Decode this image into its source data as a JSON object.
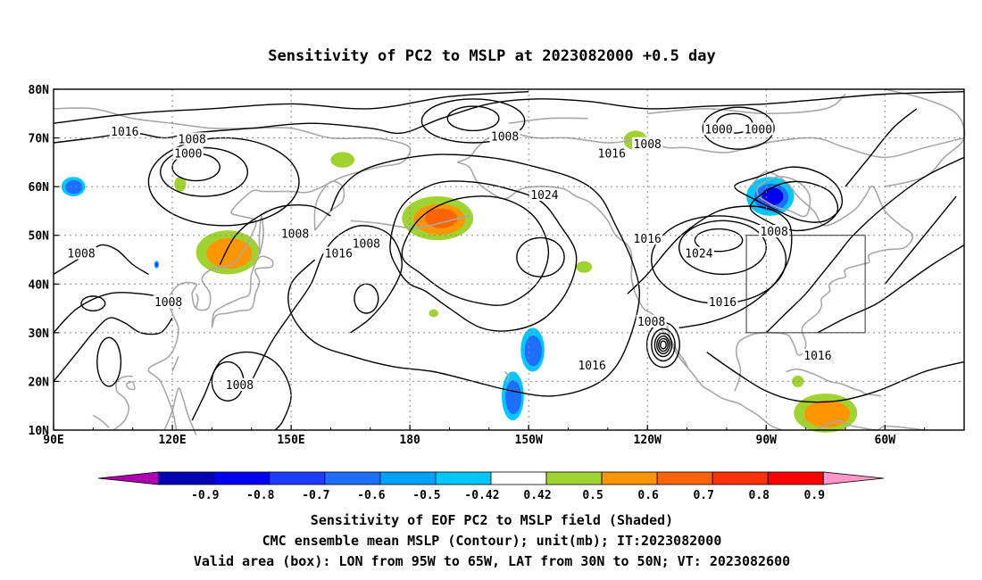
{
  "title": "Sensitivity of PC2 to MSLP at 2023082000 +0.5 day",
  "map": {
    "lon_ticks": [
      "90E",
      "120E",
      "150E",
      "180",
      "150W",
      "120W",
      "90W",
      "60W"
    ],
    "lat_ticks": [
      "80N",
      "70N",
      "60N",
      "50N",
      "40N",
      "30N",
      "20N",
      "10N"
    ],
    "valid_box": {
      "lon_west": "95W",
      "lon_east": "65W",
      "lat_south": "30N",
      "lat_north": "50N"
    },
    "contour_labels": [
      {
        "text": "1016",
        "lon": 108,
        "lat": 71
      },
      {
        "text": "1008",
        "lon": 125,
        "lat": 69.5
      },
      {
        "text": "1000",
        "lon": 124,
        "lat": 66.5
      },
      {
        "text": "1008",
        "lon": 204,
        "lat": 70
      },
      {
        "text": "1016",
        "lon": 231,
        "lat": 66.5
      },
      {
        "text": "1024",
        "lon": 214,
        "lat": 58
      },
      {
        "text": "1008",
        "lon": 240,
        "lat": 68.5
      },
      {
        "text": "1000",
        "lon": 258,
        "lat": 71.5
      },
      {
        "text": "1000",
        "lon": 268,
        "lat": 71.5
      },
      {
        "text": "1008",
        "lon": 97,
        "lat": 46
      },
      {
        "text": "1008",
        "lon": 151,
        "lat": 50
      },
      {
        "text": "1008",
        "lon": 169,
        "lat": 48
      },
      {
        "text": "1016",
        "lon": 162,
        "lat": 46
      },
      {
        "text": "1016",
        "lon": 240,
        "lat": 49
      },
      {
        "text": "1024",
        "lon": 253,
        "lat": 46
      },
      {
        "text": "1008",
        "lon": 272,
        "lat": 50.5
      },
      {
        "text": "1008",
        "lon": 119,
        "lat": 36
      },
      {
        "text": "1008",
        "lon": 241,
        "lat": 32
      },
      {
        "text": "1016",
        "lon": 259,
        "lat": 36
      },
      {
        "text": "1016",
        "lon": 226,
        "lat": 23
      },
      {
        "text": "1016",
        "lon": 283,
        "lat": 25
      },
      {
        "text": "1008",
        "lon": 137,
        "lat": 19
      }
    ],
    "shaded_regions": [
      {
        "sign": "positive",
        "lon": 134,
        "lat": 46.5,
        "rx": 8,
        "ry": 4.5,
        "level": 0.6
      },
      {
        "sign": "positive",
        "lon": 187,
        "lat": 53.5,
        "rx": 9,
        "ry": 4.5,
        "level": 0.7
      },
      {
        "sign": "positive",
        "lon": 237,
        "lat": 69.5,
        "rx": 3,
        "ry": 2,
        "level": 0.5
      },
      {
        "sign": "positive",
        "lon": 163,
        "lat": 65.5,
        "rx": 3,
        "ry": 1.6,
        "level": 0.5
      },
      {
        "sign": "positive",
        "lon": 224,
        "lat": 43.5,
        "rx": 2,
        "ry": 1.2,
        "level": 0.5
      },
      {
        "sign": "positive",
        "lon": 122,
        "lat": 60.5,
        "rx": 1.5,
        "ry": 1.5,
        "level": 0.5
      },
      {
        "sign": "positive",
        "lon": 186,
        "lat": 34,
        "rx": 1.2,
        "ry": 0.8,
        "level": 0.5
      },
      {
        "sign": "positive",
        "lon": 285,
        "lat": 13.5,
        "rx": 8,
        "ry": 4,
        "level": 0.6
      },
      {
        "sign": "positive",
        "lon": 278,
        "lat": 20,
        "rx": 1.5,
        "ry": 1.2,
        "level": 0.5
      },
      {
        "sign": "negative",
        "lon": 271,
        "lat": 58,
        "rx": 6,
        "ry": 4,
        "level": -0.7
      },
      {
        "sign": "negative",
        "lon": 211,
        "lat": 26.5,
        "rx": 3,
        "ry": 4.5,
        "level": -0.5
      },
      {
        "sign": "negative",
        "lon": 206,
        "lat": 17,
        "rx": 2.8,
        "ry": 5,
        "level": -0.5
      },
      {
        "sign": "negative",
        "lon": 95,
        "lat": 60,
        "rx": 3,
        "ry": 2,
        "level": -0.5
      },
      {
        "sign": "negative",
        "lon": 116,
        "lat": 44,
        "rx": 0.6,
        "ry": 0.8,
        "level": -0.6
      }
    ],
    "cyclone_center": {
      "lon": 244,
      "lat": 27.5
    }
  },
  "colorbar": {
    "labels": [
      "-0.9",
      "-0.8",
      "-0.7",
      "-0.6",
      "-0.5",
      "-0.42",
      "0.42",
      "0.5",
      "0.6",
      "0.7",
      "0.8",
      "0.9"
    ],
    "colors": [
      "#ae00ae",
      "#0000b4",
      "#0000f0",
      "#1e3cff",
      "#1e6eff",
      "#00a0ff",
      "#00c8ff",
      "#ffffff",
      "#a0d232",
      "#ff9600",
      "#ff6400",
      "#ff3200",
      "#ff0000",
      "#ff96c8"
    ]
  },
  "caption": {
    "line1": "Sensitivity of EOF PC2 to MSLP field (Shaded)",
    "line2": "CMC ensemble mean MSLP (Contour); unit(mb); IT:2023082000",
    "line3": "Valid area (box): LON from 95W to 65W, LAT from 30N to 50N; VT: 2023082600"
  }
}
